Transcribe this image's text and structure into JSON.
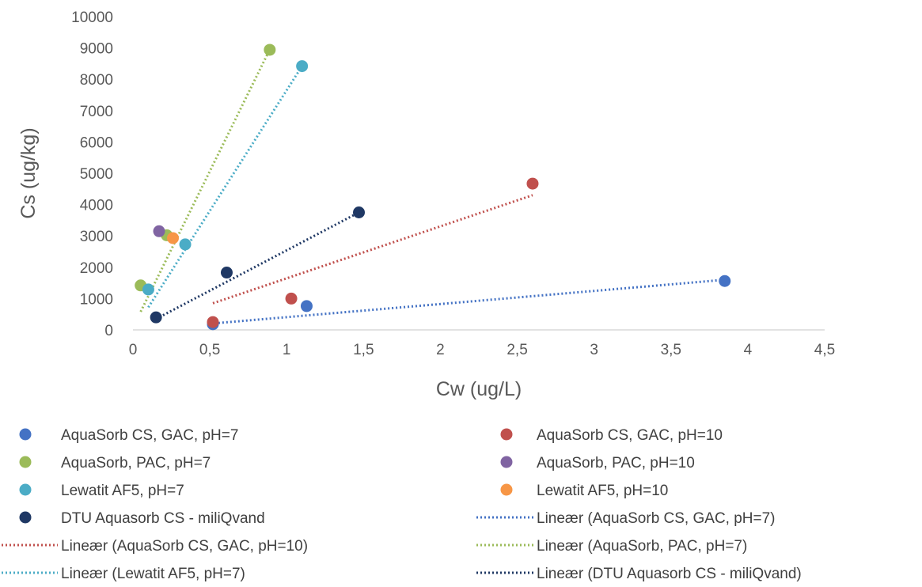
{
  "chart_data": {
    "type": "scatter",
    "xlabel": "Cw (ug/L)",
    "ylabel": "Cs (ug/kg)",
    "xlim": [
      0,
      4.5
    ],
    "ylim": [
      0,
      10000
    ],
    "x_ticks": [
      "0",
      "0,5",
      "1",
      "1,5",
      "2",
      "2,5",
      "3",
      "3,5",
      "4",
      "4,5"
    ],
    "y_ticks": [
      "0",
      "1000",
      "2000",
      "3000",
      "4000",
      "5000",
      "6000",
      "7000",
      "8000",
      "9000",
      "10000"
    ],
    "grid": false,
    "legend_position": "bottom",
    "series": [
      {
        "name": "AquaSorb CS, GAC, pH=7",
        "color": "#4472C4",
        "points": [
          [
            0.52,
            180
          ],
          [
            1.13,
            760
          ],
          [
            3.85,
            1560
          ]
        ]
      },
      {
        "name": "AquaSorb CS, GAC, pH=10",
        "color": "#C0504D",
        "points": [
          [
            0.52,
            250
          ],
          [
            1.03,
            1000
          ],
          [
            2.6,
            4670
          ]
        ]
      },
      {
        "name": "AquaSorb, PAC, pH=7",
        "color": "#9BBB59",
        "points": [
          [
            0.05,
            1420
          ],
          [
            0.22,
            3020
          ],
          [
            0.89,
            8940
          ]
        ]
      },
      {
        "name": "AquaSorb, PAC, pH=10",
        "color": "#8064A2",
        "points": [
          [
            0.17,
            3150
          ]
        ]
      },
      {
        "name": "Lewatit AF5, pH=7",
        "color": "#4BACC6",
        "points": [
          [
            0.1,
            1290
          ],
          [
            0.34,
            2730
          ],
          [
            1.1,
            8420
          ]
        ]
      },
      {
        "name": "Lewatit AF5, pH=10",
        "color": "#F79646",
        "points": [
          [
            0.26,
            2930
          ]
        ]
      },
      {
        "name": "DTU Aquasorb CS - miliQvand",
        "color": "#1F3864",
        "points": [
          [
            0.15,
            400
          ],
          [
            0.61,
            1830
          ],
          [
            1.47,
            3750
          ]
        ]
      }
    ],
    "trendlines": [
      {
        "name": "Lineær (AquaSorb CS, GAC, pH=7)",
        "color": "#4472C4",
        "x": [
          0.53,
          3.85
        ],
        "y": [
          210,
          1600
        ]
      },
      {
        "name": "Lineær (AquaSorb CS, GAC, pH=10)",
        "color": "#C0504D",
        "x": [
          0.52,
          2.6
        ],
        "y": [
          850,
          4300
        ]
      },
      {
        "name": "Lineær (AquaSorb, PAC, pH=7)",
        "color": "#9BBB59",
        "x": [
          0.05,
          0.89
        ],
        "y": [
          580,
          8950
        ]
      },
      {
        "name": "Lineær (Lewatit AF5, pH=7)",
        "color": "#4BACC6",
        "x": [
          0.1,
          1.1
        ],
        "y": [
          720,
          8420
        ]
      },
      {
        "name": "Lineær (DTU Aquasorb CS - miliQvand)",
        "color": "#1F3864",
        "x": [
          0.15,
          1.47
        ],
        "y": [
          350,
          3750
        ]
      }
    ]
  },
  "legend": [
    {
      "label": "AquaSorb CS, GAC, pH=7",
      "kind": "marker",
      "color": "#4472C4"
    },
    {
      "label": "AquaSorb CS, GAC, pH=10",
      "kind": "marker",
      "color": "#C0504D"
    },
    {
      "label": "AquaSorb, PAC, pH=7",
      "kind": "marker",
      "color": "#9BBB59"
    },
    {
      "label": "AquaSorb, PAC, pH=10",
      "kind": "marker",
      "color": "#8064A2"
    },
    {
      "label": "Lewatit AF5, pH=7",
      "kind": "marker",
      "color": "#4BACC6"
    },
    {
      "label": "Lewatit AF5, pH=10",
      "kind": "marker",
      "color": "#F79646"
    },
    {
      "label": "DTU Aquasorb CS - miliQvand",
      "kind": "marker",
      "color": "#1F3864"
    },
    {
      "label": "Lineær (AquaSorb CS, GAC, pH=7)",
      "kind": "line",
      "color": "#4472C4"
    },
    {
      "label": "Lineær (AquaSorb CS, GAC, pH=10)",
      "kind": "line",
      "color": "#C0504D"
    },
    {
      "label": "Lineær (AquaSorb, PAC, pH=7)",
      "kind": "line",
      "color": "#9BBB59"
    },
    {
      "label": "Lineær (Lewatit AF5, pH=7)",
      "kind": "line",
      "color": "#4BACC6"
    },
    {
      "label": "Lineær (DTU Aquasorb CS - miliQvand)",
      "kind": "line",
      "color": "#1F3864"
    }
  ]
}
